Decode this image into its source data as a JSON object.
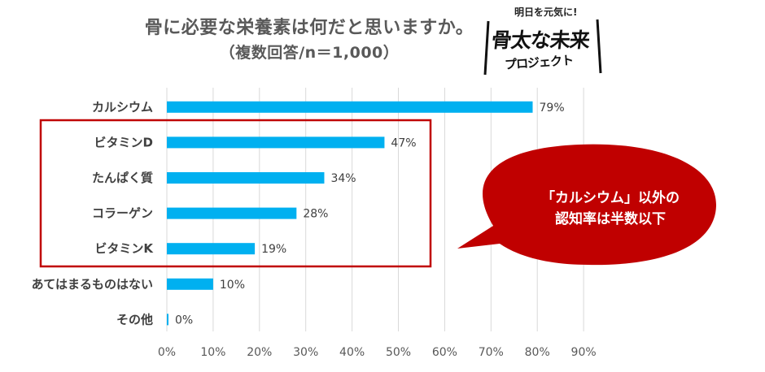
{
  "title": {
    "line1": "骨に必要な栄養素は何だと思いますか。",
    "line2": "（複数回答/n＝1,000）"
  },
  "logo": {
    "tagline": "明日を元気に!",
    "main": "骨太な未来",
    "sub": "プロジェクト"
  },
  "callout": {
    "line1": "「カルシウム」以外の",
    "line2": "認知率は半数以下",
    "color": "#C00000"
  },
  "colors": {
    "bar": "#00B0F0",
    "highlight_box": "#C00000",
    "grid": "#D9D9D9"
  },
  "chart_data": {
    "type": "bar",
    "orientation": "horizontal",
    "categories": [
      "カルシウム",
      "ビタミンD",
      "たんぱく質",
      "コラーゲン",
      "ビタミンK",
      "あてはまるものはない",
      "その他"
    ],
    "values": [
      79,
      47,
      34,
      28,
      19,
      10,
      0
    ],
    "value_labels": [
      "79%",
      "47%",
      "34%",
      "28%",
      "19%",
      "10%",
      "0%"
    ],
    "x_ticks": [
      "0%",
      "10%",
      "20%",
      "30%",
      "40%",
      "50%",
      "60%",
      "70%",
      "80%",
      "90%"
    ],
    "xlim": [
      0,
      90
    ],
    "grid": true,
    "highlighted_categories": [
      "ビタミンD",
      "たんぱく質",
      "コラーゲン",
      "ビタミンK"
    ]
  }
}
